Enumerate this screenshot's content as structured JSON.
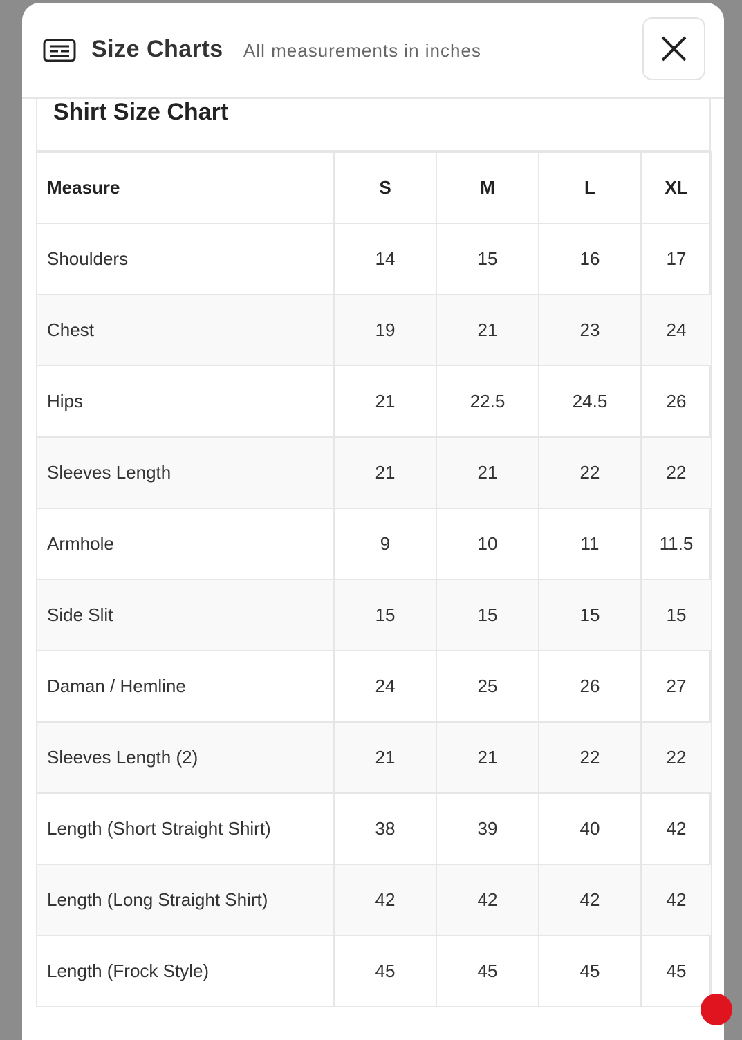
{
  "header": {
    "title": "Size Charts",
    "subtitle": "All measurements in inches"
  },
  "table": {
    "title": "Shirt Size Chart",
    "columns": [
      "Measure",
      "S",
      "M",
      "L",
      "XL"
    ],
    "rows": [
      [
        "Shoulders",
        "14",
        "15",
        "16",
        "17"
      ],
      [
        "Chest",
        "19",
        "21",
        "23",
        "24"
      ],
      [
        "Hips",
        "21",
        "22.5",
        "24.5",
        "26"
      ],
      [
        "Sleeves Length",
        "21",
        "21",
        "22",
        "22"
      ],
      [
        "Armhole",
        "9",
        "10",
        "11",
        "11.5"
      ],
      [
        "Side Slit",
        "15",
        "15",
        "15",
        "15"
      ],
      [
        "Daman / Hemline",
        "24",
        "25",
        "26",
        "27"
      ],
      [
        "Sleeves Length (2)",
        "21",
        "21",
        "22",
        "22"
      ],
      [
        "Length (Short Straight Shirt)",
        "38",
        "39",
        "40",
        "42"
      ],
      [
        "Length (Long Straight Shirt)",
        "42",
        "42",
        "42",
        "42"
      ],
      [
        "Length (Frock Style)",
        "45",
        "45",
        "45",
        "45"
      ]
    ]
  }
}
